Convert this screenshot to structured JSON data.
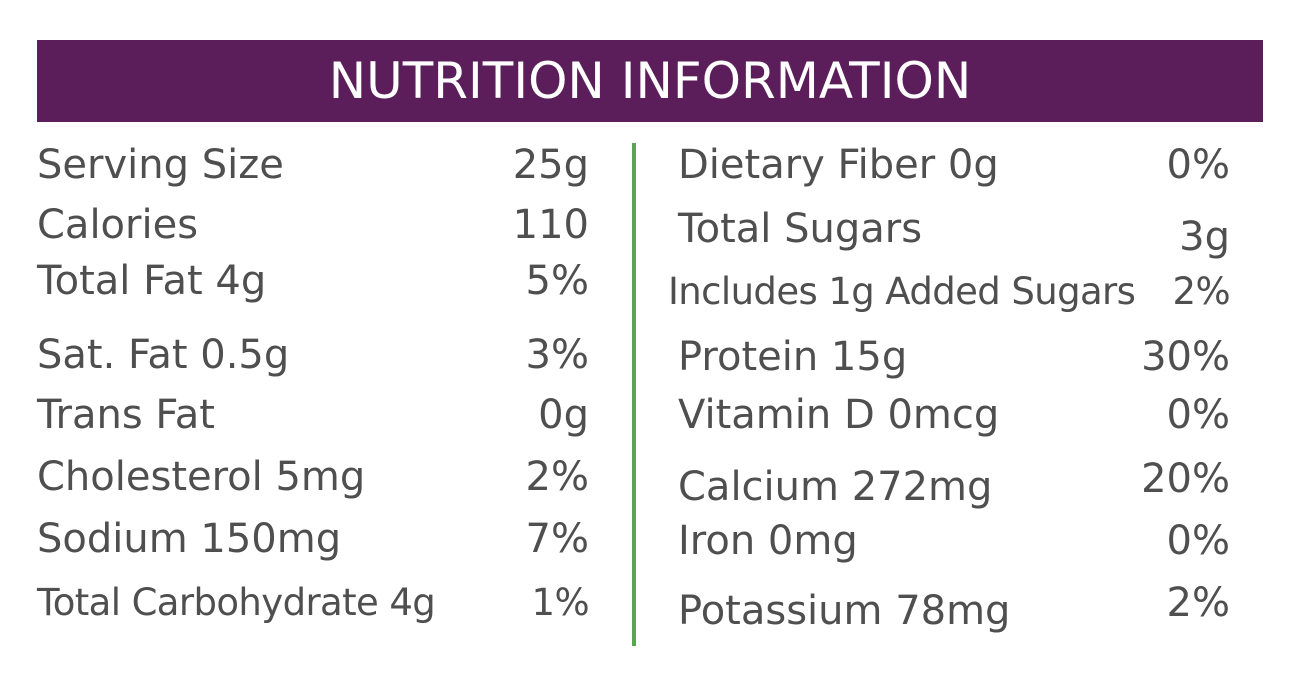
{
  "header": {
    "title": "NUTRITION INFORMATION"
  },
  "left_rows": [
    {
      "label": "Serving Size",
      "value": "25g"
    },
    {
      "label": "Calories",
      "value": "110"
    },
    {
      "label": "Total Fat 4g",
      "value": "5%"
    },
    {
      "label": "Sat. Fat 0.5g",
      "value": "3%"
    },
    {
      "label": "Trans Fat",
      "value": "0g"
    },
    {
      "label": "Cholesterol 5mg",
      "value": "2%"
    },
    {
      "label": "Sodium 150mg",
      "value": "7%"
    },
    {
      "label": "Total Carbohydrate 4g",
      "value": "1%"
    }
  ],
  "right_rows": [
    {
      "label": "Dietary Fiber 0g",
      "value": "0%"
    },
    {
      "label": "Total Sugars",
      "value": "3g"
    },
    {
      "label": "Includes 1g Added Sugars",
      "value": "2%"
    },
    {
      "label": "Protein 15g",
      "value": "30%"
    },
    {
      "label": "Vitamin D 0mcg",
      "value": "0%"
    },
    {
      "label": "Calcium 272mg",
      "value": "20%"
    },
    {
      "label": "Iron 0mg",
      "value": "0%"
    },
    {
      "label": "Potassium 78mg",
      "value": "2%"
    }
  ],
  "colors": {
    "header_background": "#5c1e5b",
    "header_text": "#ffffff",
    "divider": "#5aa551",
    "body_text": "#4f4f4f"
  }
}
